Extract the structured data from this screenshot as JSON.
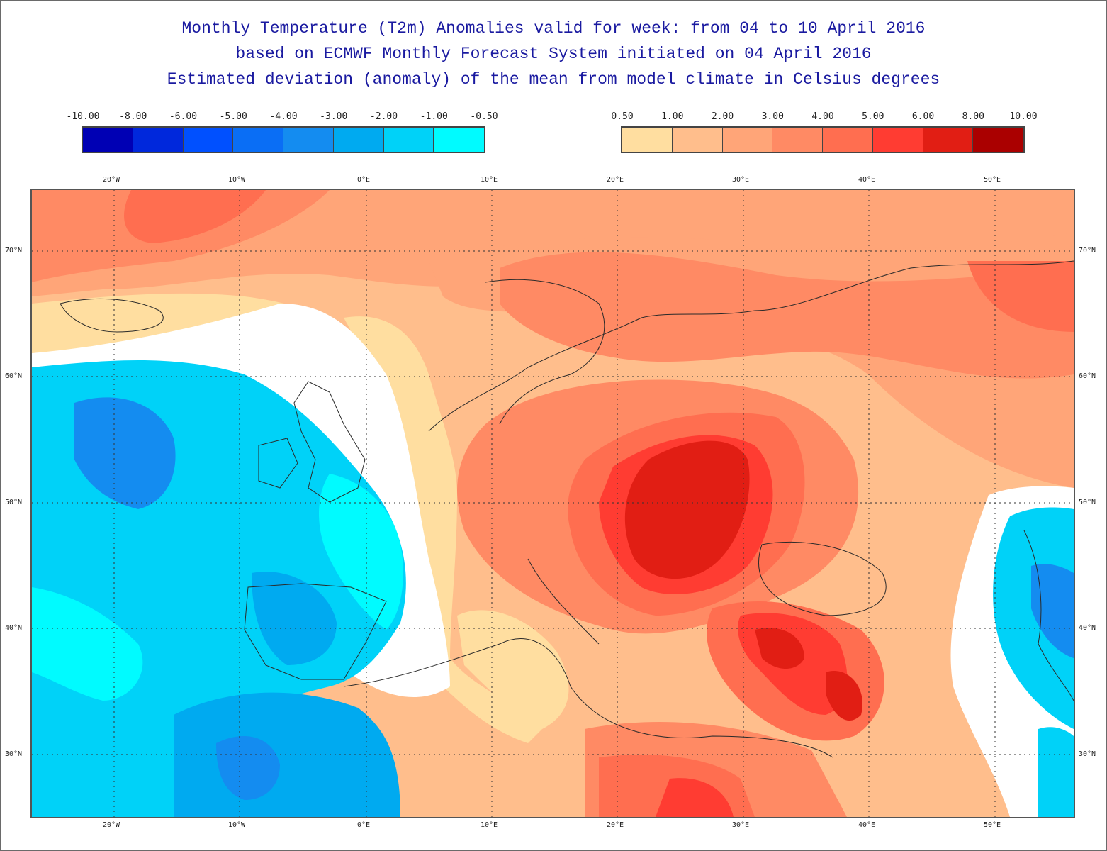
{
  "titles": {
    "line1": "Monthly Temperature (T2m) Anomalies valid for week: from 04 to 10 April 2016",
    "line2": "based on ECMWF Monthly Forecast System initiated on 04 April 2016",
    "line3": "Estimated deviation (anomaly) of the mean from model climate in Celsius degrees"
  },
  "legend_cold": {
    "labels": [
      "-10.00",
      "-8.00",
      "-6.00",
      "-5.00",
      "-4.00",
      "-3.00",
      "-2.00",
      "-1.00",
      "-0.50"
    ],
    "colors": [
      "#0000b4",
      "#0028dc",
      "#0050ff",
      "#0a6ef5",
      "#148cf0",
      "#00aaf0",
      "#00d2f8",
      "#00fbff"
    ]
  },
  "legend_warm": {
    "labels": [
      "0.50",
      "1.00",
      "2.00",
      "3.00",
      "4.00",
      "5.00",
      "6.00",
      "8.00",
      "10.00"
    ],
    "colors": [
      "#ffdea0",
      "#ffbe8c",
      "#ffa578",
      "#ff8a64",
      "#ff6e50",
      "#ff3c32",
      "#e11e14",
      "#aa0000"
    ]
  },
  "map": {
    "lon_labels": [
      "20°W",
      "10°W",
      "0°E",
      "10°E",
      "20°E",
      "30°E",
      "40°E",
      "50°E"
    ],
    "lat_labels": [
      "70°N",
      "60°N",
      "50°N",
      "40°N",
      "30°N"
    ],
    "grid": "dotted"
  }
}
